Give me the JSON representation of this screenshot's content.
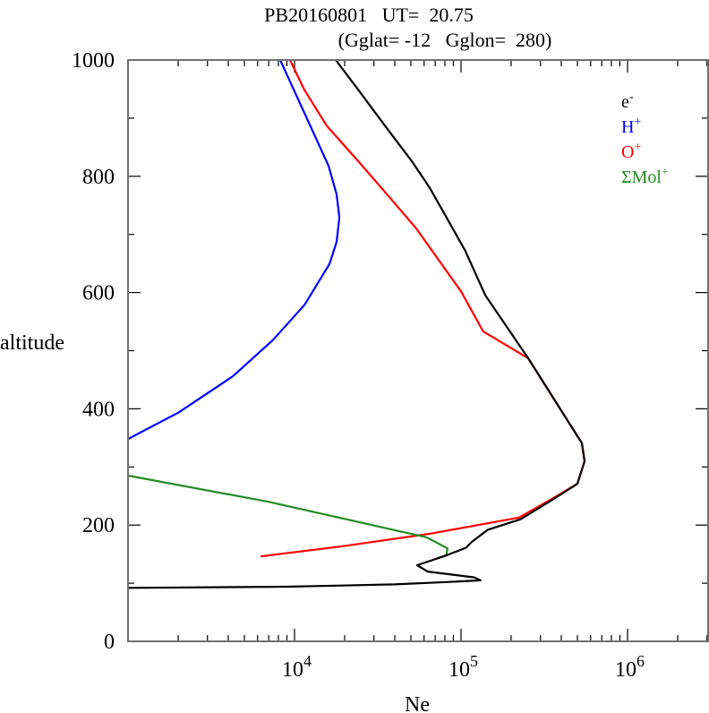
{
  "chart_data": {
    "type": "line",
    "title_line1": "PB20160801   UT=  20.75",
    "title_line2": "(Gglat= -12   Gglon=  280)",
    "xlabel": "Ne",
    "ylabel": "altitude",
    "xscale": "log",
    "xlim": [
      1000,
      3000000
    ],
    "ylim": [
      0,
      1000
    ],
    "x_ticks": [
      {
        "value": 10000,
        "base": "10",
        "exp": "4"
      },
      {
        "value": 100000,
        "base": "10",
        "exp": "5"
      },
      {
        "value": 1000000,
        "base": "10",
        "exp": "6"
      }
    ],
    "y_ticks": [
      {
        "value": 0,
        "label": "0"
      },
      {
        "value": 200,
        "label": "200"
      },
      {
        "value": 400,
        "label": "400"
      },
      {
        "value": 600,
        "label": "600"
      },
      {
        "value": 800,
        "label": "800"
      },
      {
        "value": 1000,
        "label": "1000"
      }
    ],
    "legend_position": "top-right",
    "grid": false,
    "series": [
      {
        "name": "e-",
        "label_base": "e",
        "label_sup": "-",
        "color": "#000000",
        "points": [
          [
            17700,
            1000
          ],
          [
            24100,
            949
          ],
          [
            34900,
            887
          ],
          [
            50600,
            826
          ],
          [
            64900,
            780
          ],
          [
            83000,
            726
          ],
          [
            106000,
            672
          ],
          [
            140000,
            595
          ],
          [
            253000,
            487
          ],
          [
            390000,
            402
          ],
          [
            532000,
            341
          ],
          [
            552000,
            310
          ],
          [
            500000,
            271
          ],
          [
            375000,
            248
          ],
          [
            228000,
            210
          ],
          [
            145000,
            192
          ],
          [
            116000,
            171
          ],
          [
            107000,
            161
          ],
          [
            82000,
            148
          ],
          [
            54500,
            131
          ],
          [
            63000,
            120
          ],
          [
            120000,
            110
          ],
          [
            131000,
            105
          ],
          [
            82000,
            102
          ],
          [
            40000,
            98
          ],
          [
            8950,
            94
          ],
          [
            1000,
            92
          ]
        ]
      },
      {
        "name": "H+",
        "label_base": "H",
        "label_sup": "+",
        "color": "#0000ff",
        "points": [
          [
            8200,
            1000
          ],
          [
            16000,
            818
          ],
          [
            17900,
            769
          ],
          [
            18600,
            729
          ],
          [
            17900,
            687
          ],
          [
            16200,
            649
          ],
          [
            11500,
            579
          ],
          [
            7400,
            518
          ],
          [
            4260,
            456
          ],
          [
            2020,
            394
          ],
          [
            1000,
            348
          ]
        ]
      },
      {
        "name": "O+",
        "label_base": "O",
        "label_sup": "+",
        "color": "#ff0000",
        "points": [
          [
            9400,
            1000
          ],
          [
            11450,
            949
          ],
          [
            15600,
            887
          ],
          [
            24100,
            826
          ],
          [
            37200,
            764
          ],
          [
            53900,
            710
          ],
          [
            73400,
            656
          ],
          [
            100000,
            602
          ],
          [
            136000,
            533
          ],
          [
            253000,
            487
          ],
          [
            390000,
            402
          ],
          [
            532000,
            341
          ],
          [
            552000,
            310
          ],
          [
            500000,
            271
          ],
          [
            367000,
            248
          ],
          [
            223000,
            213
          ],
          [
            64900,
            185
          ],
          [
            18800,
            163
          ],
          [
            6250,
            146
          ]
        ]
      },
      {
        "name": "ΣMol+",
        "label_base": "ΣMol",
        "label_sup": "+",
        "color": "#228b22",
        "points": [
          [
            1000,
            285
          ],
          [
            6980,
            240
          ],
          [
            34900,
            195
          ],
          [
            62000,
            179
          ],
          [
            83000,
            160
          ],
          [
            81500,
            148
          ],
          [
            72000,
            143
          ]
        ]
      }
    ]
  }
}
